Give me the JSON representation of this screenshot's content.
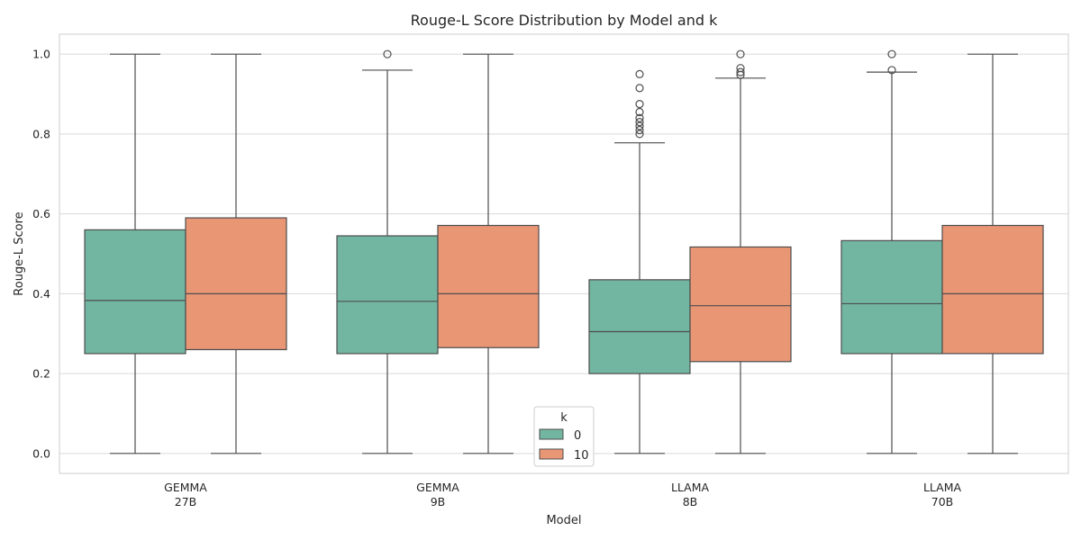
{
  "chart_data": {
    "type": "box",
    "title": "Rouge-L Score Distribution by Model and k",
    "xlabel": "Model",
    "ylabel": "Rouge-L Score",
    "ylim": [
      -0.05,
      1.05
    ],
    "yticks": [
      "0.0",
      "0.2",
      "0.4",
      "0.6",
      "0.8",
      "1.0"
    ],
    "grid": true,
    "legend": {
      "title": "k",
      "placement": "lower-center"
    },
    "categories": [
      {
        "line1": "GEMMA",
        "line2": "27B"
      },
      {
        "line1": "GEMMA",
        "line2": "9B"
      },
      {
        "line1": "LLAMA",
        "line2": "8B"
      },
      {
        "line1": "LLAMA",
        "line2": "70B"
      }
    ],
    "series": [
      {
        "name": "0",
        "color": "#72b6a1",
        "boxes": [
          {
            "whislo": 0.0,
            "q1": 0.25,
            "med": 0.383,
            "q3": 0.56,
            "whishi": 1.0,
            "fliers": []
          },
          {
            "whislo": 0.0,
            "q1": 0.25,
            "med": 0.381,
            "q3": 0.545,
            "whishi": 0.96,
            "fliers": [
              1.0
            ]
          },
          {
            "whislo": 0.0,
            "q1": 0.2,
            "med": 0.305,
            "q3": 0.435,
            "whishi": 0.778,
            "fliers": [
              0.8,
              0.81,
              0.82,
              0.83,
              0.84,
              0.855,
              0.875,
              0.915,
              0.95
            ]
          },
          {
            "whislo": 0.0,
            "q1": 0.25,
            "med": 0.375,
            "q3": 0.533,
            "whishi": 0.955,
            "fliers": [
              0.96,
              1.0
            ]
          }
        ]
      },
      {
        "name": "10",
        "color": "#e99675",
        "boxes": [
          {
            "whislo": 0.0,
            "q1": 0.26,
            "med": 0.4,
            "q3": 0.59,
            "whishi": 1.0,
            "fliers": []
          },
          {
            "whislo": 0.0,
            "q1": 0.265,
            "med": 0.4,
            "q3": 0.571,
            "whishi": 1.0,
            "fliers": []
          },
          {
            "whislo": 0.0,
            "q1": 0.23,
            "med": 0.37,
            "q3": 0.517,
            "whishi": 0.94,
            "fliers": [
              0.948,
              0.955,
              0.965,
              1.0
            ]
          },
          {
            "whislo": 0.0,
            "q1": 0.25,
            "med": 0.4,
            "q3": 0.571,
            "whishi": 1.0,
            "fliers": []
          }
        ]
      }
    ]
  }
}
